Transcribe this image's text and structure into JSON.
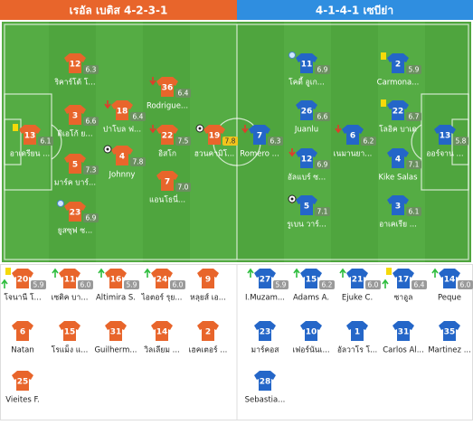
{
  "header": {
    "home": "เรอัล เบติส 4-2-3-1",
    "away": "4-1-4-1 เซบีย่า"
  },
  "home": {
    "starters": [
      {
        "number": "13",
        "name": "อาเดรียน ...",
        "rating": "6.1"
      },
      {
        "number": "12",
        "name": "ริคาร์โด้ โ...",
        "rating": "6.3"
      },
      {
        "number": "3",
        "name": "ดิเอโก้ ย...",
        "rating": "6.6"
      },
      {
        "number": "5",
        "name": "มาร์ค บาร์...",
        "rating": "7.3"
      },
      {
        "number": "23",
        "name": "ยูสซุฟ ซ...",
        "rating": "6.9"
      },
      {
        "number": "18",
        "name": "ปาโบล ฟ...",
        "rating": "6.4"
      },
      {
        "number": "4",
        "name": "Johnny",
        "rating": "7.8"
      },
      {
        "number": "36",
        "name": "Rodrigue...",
        "rating": "6.4"
      },
      {
        "number": "22",
        "name": "อิสโก",
        "rating": "7.5"
      },
      {
        "number": "7",
        "name": "แอนโธนี่...",
        "rating": "7.0"
      },
      {
        "number": "19",
        "name": "ฮวนคามิโ...",
        "rating": "7.8"
      }
    ],
    "subs": [
      {
        "number": "20",
        "name": "โจนานี โ...",
        "rating": "5.9"
      },
      {
        "number": "11",
        "name": "เซดิค บา...",
        "rating": "6.0"
      },
      {
        "number": "16",
        "name": "Altimira S.",
        "rating": "5.9"
      },
      {
        "number": "24",
        "name": "ไอตอร์ รุย...",
        "rating": "6.0"
      },
      {
        "number": "9",
        "name": "หลุยส์ เอ..."
      },
      {
        "number": "6",
        "name": "Natan"
      },
      {
        "number": "15",
        "name": "โรแม็ง แ..."
      },
      {
        "number": "31",
        "name": "Guilherm..."
      },
      {
        "number": "14",
        "name": "วิลเลียม ..."
      },
      {
        "number": "2",
        "name": "เฮคเตอร์ ..."
      },
      {
        "number": "25",
        "name": "Vieites F."
      }
    ]
  },
  "away": {
    "starters": [
      {
        "number": "7",
        "name": "Romero ...",
        "rating": "6.3"
      },
      {
        "number": "11",
        "name": "โคดี้ อูเก...",
        "rating": "6.9"
      },
      {
        "number": "26",
        "name": "Juanlu",
        "rating": "6.6"
      },
      {
        "number": "12",
        "name": "อัลแบร์ ซ...",
        "rating": "6.9"
      },
      {
        "number": "5",
        "name": "รูเบน วาร์...",
        "rating": "7.1"
      },
      {
        "number": "6",
        "name": "เนมานยา...",
        "rating": "6.2"
      },
      {
        "number": "2",
        "name": "Carmona...",
        "rating": "5.9"
      },
      {
        "number": "22",
        "name": "โลอิค บาเด",
        "rating": "6.7"
      },
      {
        "number": "4",
        "name": "Kike Salas",
        "rating": "7.1"
      },
      {
        "number": "3",
        "name": "อาเคเรีย ...",
        "rating": "6.1"
      },
      {
        "number": "13",
        "name": "ออร์จาน ...",
        "rating": "5.8"
      }
    ],
    "subs": [
      {
        "number": "27",
        "name": "I.Muzam...",
        "rating": "5.9"
      },
      {
        "number": "15",
        "name": "Adams A.",
        "rating": "6.2"
      },
      {
        "number": "21",
        "name": "Ejuke C.",
        "rating": "6.0"
      },
      {
        "number": "17",
        "name": "ซาอูล",
        "rating": "6.4"
      },
      {
        "number": "14",
        "name": "Peque",
        "rating": "6.0"
      },
      {
        "number": "23",
        "name": "มาร์คอส"
      },
      {
        "number": "10",
        "name": "เฟอร์นันเ..."
      },
      {
        "number": "1",
        "name": "อัลวาโร โ..."
      },
      {
        "number": "31",
        "name": "Carlos Al..."
      },
      {
        "number": "35",
        "name": "Martinez ..."
      },
      {
        "number": "28",
        "name": "Sebastia..."
      }
    ]
  }
}
